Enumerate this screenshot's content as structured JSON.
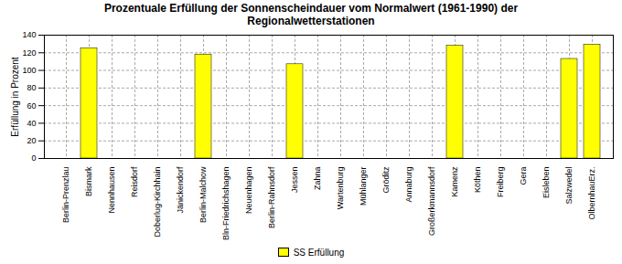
{
  "chart_data": {
    "type": "bar",
    "title": "Prozentuale Erfüllung der Sonnenscheindauer vom Normalwert (1961-1990) der\nRegionalwetterstationen",
    "ylabel": "Erfüllung in Prozent",
    "categories": [
      "Berlin-Prenzlau",
      "Bismark",
      "Nennhausen",
      "Reisdorf",
      "Doberlug-Kirchhain",
      "Jänickendorf",
      "Berlin-Malchow",
      "Bln-Friedrichshagen",
      "Neuenhagen",
      "Berlin-Rahnsdorf",
      "Jessen",
      "Zahna",
      "Wartenburg",
      "Mühlanger",
      "Gröditz",
      "Annaburg",
      "Großerkmannsdorf",
      "Kamenz",
      "Köthen",
      "Freiberg",
      "Gera",
      "Eisleben",
      "Salzwedel",
      "OlbernhauErz."
    ],
    "series": [
      {
        "name": "SS Erfüllung",
        "color": "#ffff00",
        "values": [
          0,
          125,
          0,
          0,
          0,
          0,
          118,
          0,
          0,
          0,
          107,
          0,
          0,
          0,
          0,
          0,
          0,
          128,
          0,
          0,
          0,
          0,
          113,
          129
        ]
      }
    ],
    "ylim": [
      0,
      140
    ],
    "yticks": [
      0,
      20,
      40,
      60,
      80,
      100,
      120,
      140
    ],
    "grid": true,
    "legend": "bottom"
  }
}
